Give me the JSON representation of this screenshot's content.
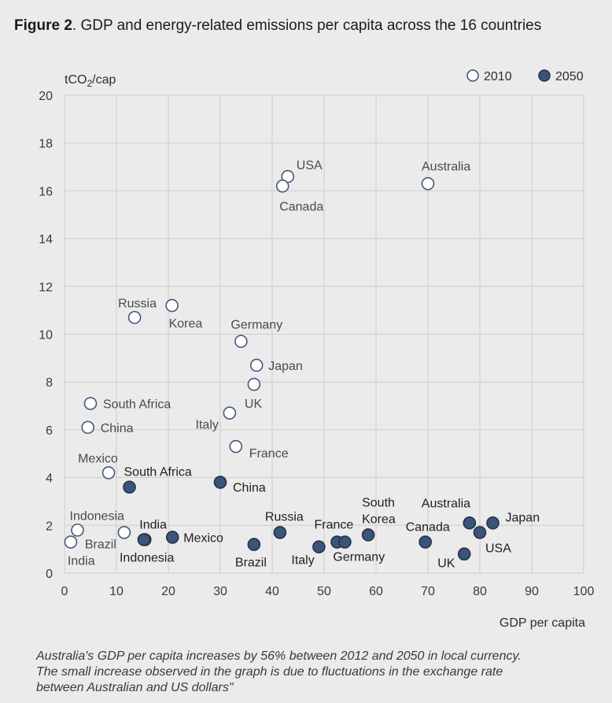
{
  "figure": {
    "label": "Figure 2",
    "title": ". GDP and energy-related emissions per capita across the 16 countries"
  },
  "chart_data": {
    "type": "scatter",
    "xlabel": "GDP per capita",
    "ylabel": "tCO2/cap",
    "xlim": [
      0,
      100
    ],
    "ylim": [
      0,
      20
    ],
    "xticks": [
      0,
      10,
      20,
      30,
      40,
      50,
      60,
      70,
      80,
      90,
      100
    ],
    "yticks": [
      0,
      2,
      4,
      6,
      8,
      10,
      12,
      14,
      16,
      18,
      20
    ],
    "grid": true,
    "legend_position": "top-right",
    "series": [
      {
        "name": "2010",
        "marker": "hollow circle",
        "color": "#ffffff",
        "points": [
          {
            "label": "USA",
            "x": 43.0,
            "y": 16.6
          },
          {
            "label": "Canada",
            "x": 42.0,
            "y": 16.2
          },
          {
            "label": "Australia",
            "x": 70.0,
            "y": 16.3
          },
          {
            "label": "Russia",
            "x": 13.5,
            "y": 10.7
          },
          {
            "label": "Korea",
            "x": 20.7,
            "y": 11.2
          },
          {
            "label": "Germany",
            "x": 34.0,
            "y": 9.7
          },
          {
            "label": "Japan",
            "x": 37.0,
            "y": 8.7
          },
          {
            "label": "UK",
            "x": 36.5,
            "y": 7.9
          },
          {
            "label": "South Africa",
            "x": 5.0,
            "y": 7.1
          },
          {
            "label": "China",
            "x": 4.5,
            "y": 6.1
          },
          {
            "label": "Italy",
            "x": 31.8,
            "y": 6.7
          },
          {
            "label": "France",
            "x": 33.0,
            "y": 5.3
          },
          {
            "label": "Mexico",
            "x": 8.5,
            "y": 4.2
          },
          {
            "label": "Indonesia",
            "x": 2.5,
            "y": 1.8
          },
          {
            "label": "India",
            "x": 1.2,
            "y": 1.3
          },
          {
            "label": "Brazil",
            "x": 11.5,
            "y": 1.7
          }
        ]
      },
      {
        "name": "2050",
        "marker": "filled circle",
        "color": "#3b5478",
        "points": [
          {
            "label": "South Africa",
            "x": 12.5,
            "y": 3.6
          },
          {
            "label": "China",
            "x": 30.0,
            "y": 3.8
          },
          {
            "label": "India",
            "x": 15.5,
            "y": 1.4
          },
          {
            "label": "Indonesia",
            "x": 15.3,
            "y": 1.4
          },
          {
            "label": "Mexico",
            "x": 20.8,
            "y": 1.5
          },
          {
            "label": "Brazil",
            "x": 36.5,
            "y": 1.2
          },
          {
            "label": "Russia",
            "x": 41.5,
            "y": 1.7
          },
          {
            "label": "Italy",
            "x": 49.0,
            "y": 1.1
          },
          {
            "label": "France",
            "x": 52.5,
            "y": 1.3
          },
          {
            "label": "Germany",
            "x": 54.0,
            "y": 1.3
          },
          {
            "label": "South Korea",
            "x": 58.5,
            "y": 1.6
          },
          {
            "label": "Canada",
            "x": 69.5,
            "y": 1.3
          },
          {
            "label": "UK",
            "x": 77.0,
            "y": 0.8
          },
          {
            "label": "Australia",
            "x": 78.0,
            "y": 2.1
          },
          {
            "label": "USA",
            "x": 80.0,
            "y": 1.7
          },
          {
            "label": "Japan",
            "x": 82.5,
            "y": 2.1
          }
        ]
      }
    ]
  },
  "note": {
    "line1": "Australia's GDP per capita increases by 56% between 2012 and 2050 in local currency.",
    "line2": "The small increase observed in the graph is due to fluctuations in the exchange rate",
    "line3": "between Australian and US dollars\""
  }
}
